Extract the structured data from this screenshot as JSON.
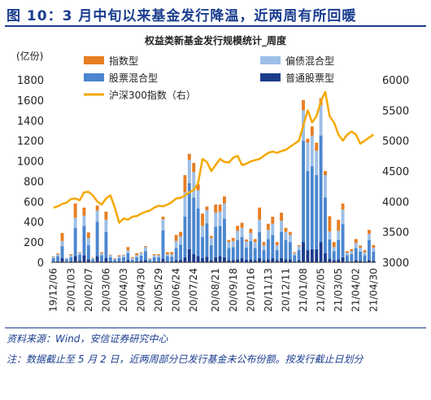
{
  "figure": {
    "title": "图 10：3 月中旬以来基金发行降温，近两周有所回暖",
    "source": "资料来源：Wind，安信证券研究中心",
    "note": "注：数据截止至 5 月 2 日，近两周部分已发行基金未公布份额。按发行截止日划分"
  },
  "colors": {
    "index": "#e87e22",
    "stock": "#4a86cf",
    "hybrid_bias": "#9dbfe6",
    "common_stock": "#1b3a8c",
    "line": "#f5a800",
    "title": "#1a3d8f"
  },
  "chart_data": {
    "type": "bar",
    "stacked": true,
    "title": "权益类新基金发行规模统计_周度",
    "ylabel": "(亿份)",
    "y2label": "",
    "ylim": [
      0,
      1800
    ],
    "y2lim": [
      3000,
      6000
    ],
    "yticks": [
      0,
      200,
      400,
      600,
      800,
      1000,
      1200,
      1400,
      1600,
      1800
    ],
    "y2ticks": [
      3000,
      3500,
      4000,
      4500,
      5000,
      5500,
      6000
    ],
    "xtick_labels": [
      "19/12/06",
      "20/01/03",
      "20/02/07",
      "20/03/06",
      "20/04/03",
      "20/04/30",
      "20/05/29",
      "20/06/24",
      "20/07/24",
      "20/08/21",
      "20/09/18",
      "20/10/16",
      "20/11/13",
      "20/12/11",
      "21/01/08",
      "21/02/05",
      "21/03/05",
      "21/04/02",
      "21/04/30"
    ],
    "legend": {
      "position": "top",
      "entries": [
        "指数型",
        "偏债混合型",
        "股票混合型",
        "普通股票型",
        "沪深300指数（右）"
      ]
    },
    "grid": false,
    "n_weeks": 74,
    "series": [
      {
        "name": "普通股票型",
        "values": [
          5,
          10,
          40,
          5,
          10,
          60,
          15,
          70,
          30,
          5,
          60,
          10,
          40,
          10,
          5,
          10,
          10,
          20,
          5,
          10,
          15,
          20,
          5,
          10,
          10,
          35,
          10,
          10,
          20,
          25,
          50,
          130,
          80,
          60,
          40,
          55,
          20,
          50,
          60,
          50,
          20,
          20,
          30,
          40,
          25,
          30,
          20,
          40,
          20,
          30,
          40,
          20,
          40,
          30,
          30,
          10,
          20,
          200,
          120,
          130,
          130,
          200,
          90,
          35,
          20,
          30,
          50,
          10,
          10,
          20,
          15,
          10,
          20,
          15
        ]
      },
      {
        "name": "股票混合型",
        "values": [
          35,
          50,
          120,
          25,
          40,
          280,
          60,
          290,
          140,
          25,
          340,
          60,
          260,
          40,
          20,
          30,
          40,
          70,
          20,
          40,
          50,
          90,
          20,
          40,
          40,
          280,
          50,
          45,
          120,
          150,
          400,
          650,
          560,
          470,
          210,
          330,
          150,
          300,
          300,
          380,
          120,
          130,
          190,
          210,
          120,
          180,
          120,
          260,
          100,
          200,
          230,
          100,
          260,
          190,
          170,
          60,
          100,
          1000,
          780,
          820,
          730,
          1050,
          550,
          190,
          90,
          190,
          330,
          60,
          70,
          120,
          90,
          60,
          200,
          90
        ]
      },
      {
        "name": "偏债混合型",
        "values": [
          15,
          20,
          50,
          10,
          20,
          100,
          20,
          100,
          70,
          10,
          110,
          20,
          120,
          20,
          10,
          20,
          20,
          30,
          15,
          20,
          30,
          40,
          10,
          20,
          20,
          110,
          20,
          25,
          70,
          80,
          240,
          230,
          250,
          180,
          110,
          130,
          70,
          140,
          140,
          150,
          60,
          60,
          90,
          90,
          60,
          80,
          60,
          120,
          50,
          90,
          110,
          50,
          110,
          80,
          70,
          20,
          40,
          300,
          280,
          300,
          240,
          300,
          220,
          80,
          40,
          90,
          140,
          25,
          30,
          50,
          40,
          30,
          60,
          40
        ]
      },
      {
        "name": "指数型",
        "values": [
          5,
          8,
          80,
          3,
          10,
          140,
          5,
          80,
          55,
          5,
          50,
          10,
          80,
          5,
          5,
          10,
          5,
          30,
          10,
          20,
          5,
          10,
          5,
          10,
          10,
          25,
          20,
          20,
          60,
          45,
          170,
          60,
          90,
          60,
          120,
          35,
          20,
          80,
          70,
          70,
          20,
          30,
          50,
          50,
          20,
          40,
          30,
          120,
          30,
          60,
          70,
          30,
          80,
          40,
          30,
          10,
          10,
          100,
          40,
          90,
          80,
          70,
          40,
          150,
          50,
          110,
          60,
          15,
          20,
          40,
          20,
          20,
          40,
          25
        ]
      },
      {
        "name": "沪深300指数（右）",
        "axis": "right",
        "values": [
          3900,
          3920,
          3960,
          3980,
          4040,
          4050,
          4020,
          4150,
          4160,
          4100,
          4000,
          3950,
          4050,
          4100,
          3900,
          3650,
          3720,
          3700,
          3750,
          3760,
          3800,
          3830,
          3850,
          3900,
          3930,
          3920,
          3950,
          3990,
          4050,
          4060,
          4100,
          4150,
          4190,
          4300,
          4700,
          4650,
          4500,
          4600,
          4700,
          4650,
          4640,
          4720,
          4750,
          4600,
          4620,
          4660,
          4680,
          4700,
          4750,
          4800,
          4820,
          4800,
          4830,
          4850,
          4900,
          4950,
          5000,
          5250,
          5500,
          5300,
          5400,
          5650,
          5800,
          5400,
          5300,
          5100,
          5000,
          5100,
          5150,
          5100,
          4950,
          5000,
          5050,
          5100
        ]
      }
    ]
  }
}
